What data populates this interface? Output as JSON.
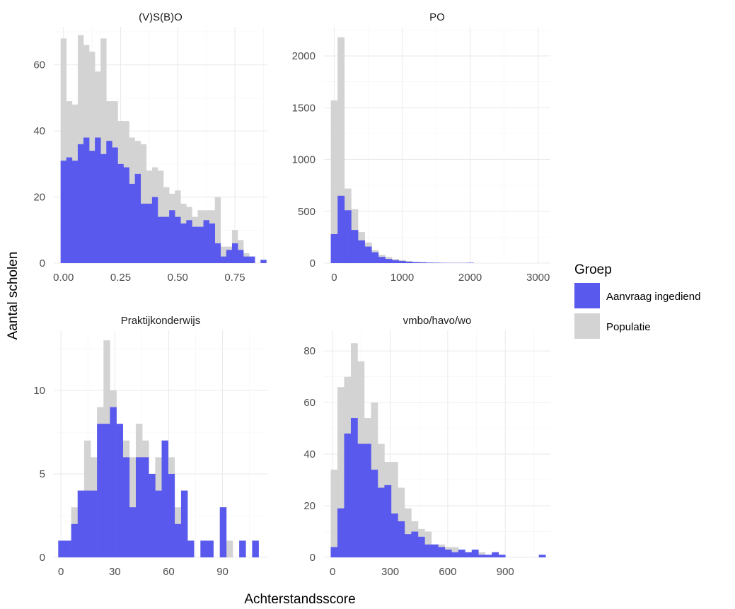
{
  "chart_data": {
    "type": "bar",
    "xlabel": "Achterstandsscore",
    "ylabel": "Aantal scholen",
    "legend": {
      "title": "Groep",
      "position": "right",
      "entries": [
        {
          "label": "Aanvraag ingediend",
          "color": "#5959ee"
        },
        {
          "label": "Populatie",
          "color": "#d3d3d3"
        }
      ]
    },
    "grid": true,
    "panels": [
      {
        "title": "(V)S(B)O",
        "xlim": [
          -0.0425,
          0.8925
        ],
        "ylim": [
          0,
          71.5
        ],
        "xticks": [
          0,
          0.25,
          0.5,
          0.75
        ],
        "xtick_labels": [
          "0.00",
          "0.25",
          "0.50",
          "0.75"
        ],
        "yticks": [
          0,
          20,
          40,
          60
        ],
        "ytick_labels": [
          "0",
          "20",
          "40",
          "60"
        ],
        "bin_start": -0.0125,
        "bin_width": 0.025,
        "populatie": [
          68,
          49,
          48,
          69,
          66,
          64,
          58,
          68,
          49,
          49,
          43,
          43,
          38,
          37,
          36,
          28,
          29,
          28,
          23,
          21,
          22,
          18,
          17,
          14,
          16,
          16,
          16,
          20,
          5,
          5,
          10,
          7,
          3,
          2,
          0,
          1
        ],
        "aanvraag": [
          31,
          32,
          31,
          36,
          38,
          34,
          38,
          33,
          37,
          35,
          30,
          29,
          24,
          27,
          18,
          18,
          20,
          14,
          14,
          16,
          14,
          12,
          13,
          11,
          11,
          13,
          12,
          6,
          2,
          4,
          6,
          4,
          2,
          2,
          0,
          1
        ]
      },
      {
        "title": "PO",
        "xlim": [
          -150,
          3180
        ],
        "ylim": [
          0,
          2280
        ],
        "xticks": [
          0,
          1000,
          2000,
          3000
        ],
        "xtick_labels": [
          "0",
          "1000",
          "2000",
          "3000"
        ],
        "yticks": [
          0,
          500,
          1000,
          1500,
          2000
        ],
        "ytick_labels": [
          "0",
          "500",
          "1000",
          "1500",
          "2000"
        ],
        "bin_start": -50,
        "bin_width": 100,
        "populatie": [
          1570,
          2180,
          720,
          520,
          300,
          200,
          125,
          80,
          60,
          40,
          30,
          20,
          12,
          10,
          6,
          5,
          3,
          2,
          2,
          2,
          2,
          0,
          0,
          0,
          0,
          0,
          0,
          0,
          0,
          0,
          0,
          0
        ],
        "aanvraag": [
          280,
          650,
          510,
          320,
          220,
          160,
          105,
          60,
          40,
          28,
          20,
          14,
          10,
          8,
          5,
          4,
          3,
          2,
          2,
          2,
          4,
          0,
          0,
          0,
          0,
          0,
          0,
          0,
          0,
          0,
          0,
          0
        ]
      },
      {
        "title": "Praktijkonderwijs",
        "xlim": [
          -4,
          115
        ],
        "ylim": [
          0,
          13.6
        ],
        "xticks": [
          0,
          30,
          60,
          90
        ],
        "xtick_labels": [
          "0",
          "30",
          "60",
          "90"
        ],
        "yticks": [
          0,
          5,
          10
        ],
        "ytick_labels": [
          "0",
          "5",
          "10"
        ],
        "bin_start": -1.5,
        "bin_width": 3.6,
        "populatie": [
          1,
          1,
          3,
          4,
          7,
          6,
          9,
          13,
          10,
          8,
          7,
          6,
          8,
          7,
          5,
          6,
          7,
          6,
          3,
          4,
          1,
          0,
          1,
          1,
          0,
          3,
          1,
          0,
          1,
          0,
          1
        ],
        "aanvraag": [
          1,
          1,
          2,
          4,
          4,
          4,
          8,
          8,
          9,
          8,
          6,
          3,
          6,
          6,
          5,
          4,
          7,
          5,
          2,
          4,
          1,
          0,
          1,
          1,
          0,
          3,
          0,
          0,
          1,
          0,
          1
        ]
      },
      {
        "title": "vmbo/havo/wo",
        "xlim": [
          -45,
          1135
        ],
        "ylim": [
          0,
          88
        ],
        "xticks": [
          0,
          300,
          600,
          900
        ],
        "xtick_labels": [
          "0",
          "300",
          "600",
          "900"
        ],
        "yticks": [
          0,
          20,
          40,
          60,
          80
        ],
        "ytick_labels": [
          "0",
          "20",
          "40",
          "60",
          "80"
        ],
        "bin_start": -10,
        "bin_width": 35,
        "populatie": [
          34,
          66,
          70,
          83,
          76,
          54,
          60,
          44,
          37,
          37,
          27,
          19,
          14,
          11,
          10,
          5,
          5,
          4,
          4,
          3,
          2,
          3,
          2,
          1,
          2,
          1,
          0,
          0,
          0,
          0,
          0,
          1
        ],
        "aanvraag": [
          4,
          19,
          48,
          54,
          44,
          44,
          34,
          27,
          28,
          17,
          14,
          9,
          10,
          8,
          5,
          5,
          4,
          3,
          2,
          3,
          2,
          3,
          1,
          1,
          2,
          1,
          0,
          0,
          0,
          0,
          0,
          1
        ]
      }
    ]
  }
}
